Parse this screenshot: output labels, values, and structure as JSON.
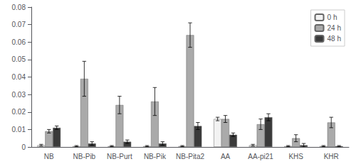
{
  "chart_data": {
    "type": "bar",
    "categories": [
      "NB",
      "NB-Pib",
      "NB-Purt",
      "NB-Pik",
      "NB-Pita2",
      "AA",
      "AA-pi21",
      "KHS",
      "KHR"
    ],
    "series": [
      {
        "name": "0 h",
        "color": "#f2f2f2",
        "values": [
          0.001,
          0.0005,
          0.0005,
          0.0005,
          0.0005,
          0.016,
          0.001,
          0.0005,
          0.0005
        ],
        "errors": [
          0.0005,
          0.0003,
          0.0003,
          0.0003,
          0.0003,
          0.001,
          0.0005,
          0.0003,
          0.0003
        ]
      },
      {
        "name": "24 h",
        "color": "#aaaaaa",
        "values": [
          0.009,
          0.039,
          0.024,
          0.026,
          0.064,
          0.016,
          0.013,
          0.005,
          0.014
        ],
        "errors": [
          0.001,
          0.01,
          0.005,
          0.008,
          0.007,
          0.002,
          0.003,
          0.002,
          0.003
        ]
      },
      {
        "name": "48 h",
        "color": "#3a3a3a",
        "values": [
          0.011,
          0.002,
          0.003,
          0.002,
          0.012,
          0.007,
          0.017,
          0.001,
          0.0005
        ],
        "errors": [
          0.001,
          0.001,
          0.001,
          0.001,
          0.002,
          0.001,
          0.002,
          0.001,
          0.0003
        ]
      }
    ],
    "ylim": [
      0,
      0.08
    ],
    "yticks": [
      0,
      0.01,
      0.02,
      0.03,
      0.04,
      0.05,
      0.06,
      0.07,
      0.08
    ],
    "grid": false,
    "legend": "upper right"
  }
}
